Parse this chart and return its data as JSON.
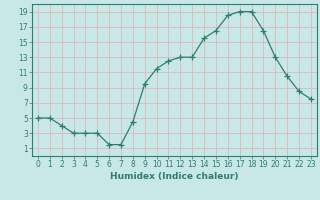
{
  "x": [
    0,
    1,
    2,
    3,
    4,
    5,
    6,
    7,
    8,
    9,
    10,
    11,
    12,
    13,
    14,
    15,
    16,
    17,
    18,
    19,
    20,
    21,
    22,
    23
  ],
  "y": [
    5,
    5,
    4,
    3,
    3,
    3,
    1.5,
    1.5,
    4.5,
    9.5,
    11.5,
    12.5,
    13,
    13,
    15.5,
    16.5,
    18.5,
    19,
    19,
    16.5,
    13,
    10.5,
    8.5,
    7.5
  ],
  "xlabel": "Humidex (Indice chaleur)",
  "line_color": "#2e7d6e",
  "marker": "+",
  "marker_size": 4,
  "bg_color": "#c8e8e8",
  "grid_color": "#deb8b8",
  "xlim": [
    -0.5,
    23.5
  ],
  "ylim": [
    0,
    20
  ],
  "yticks": [
    1,
    3,
    5,
    7,
    9,
    11,
    13,
    15,
    17,
    19
  ],
  "xticks": [
    0,
    1,
    2,
    3,
    4,
    5,
    6,
    7,
    8,
    9,
    10,
    11,
    12,
    13,
    14,
    15,
    16,
    17,
    18,
    19,
    20,
    21,
    22,
    23
  ],
  "tick_fontsize": 5.5,
  "xlabel_fontsize": 6.5
}
